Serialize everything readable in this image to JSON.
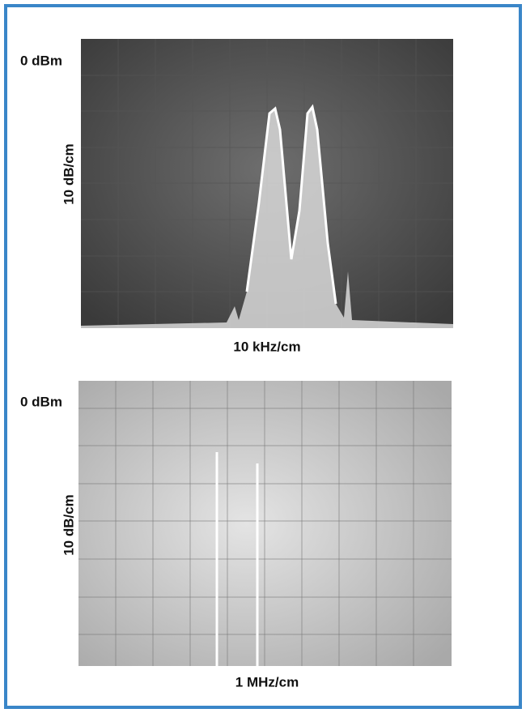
{
  "panels": [
    {
      "reference_level": "0 dBm",
      "vertical_scale": "10 dB/cm",
      "horizontal_scale": "10 kHz/cm"
    },
    {
      "reference_level": "0 dBm",
      "vertical_scale": "10 dB/cm",
      "horizontal_scale": "1 MHz/cm"
    }
  ]
}
